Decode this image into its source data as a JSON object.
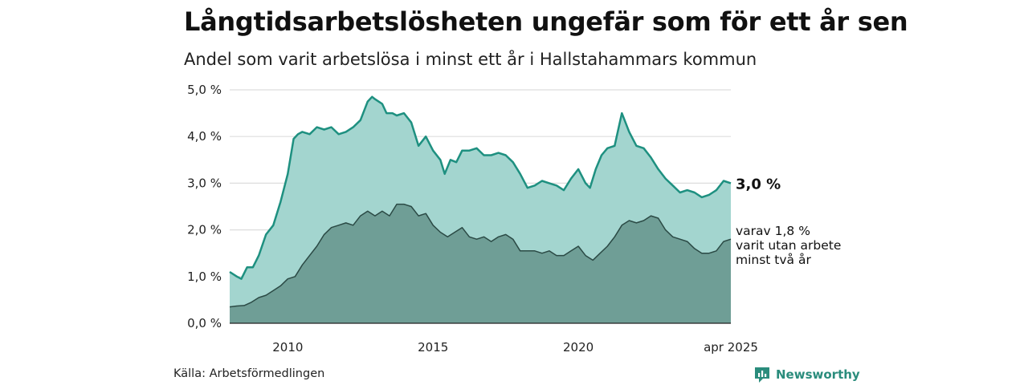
{
  "title": "Långtidsarbetslösheten ungefär som för ett år sen",
  "subtitle": "Andel som varit arbetslösa i minst ett år i Hallstahammars kommun",
  "source": "Källa: Arbetsförmedlingen",
  "logo": {
    "text": "Newsworthy",
    "icon": "newsworthy-logo-icon",
    "color": "#2a8c7c"
  },
  "colors": {
    "total_fill": "#a3d5cf",
    "total_line": "#1e9080",
    "sub_fill": "#6f9e96",
    "sub_line": "#2b4a45",
    "grid": "#dddddd",
    "baseline": "#222222"
  },
  "chart_data": {
    "type": "area",
    "grid": true,
    "ylim": [
      0,
      5
    ],
    "y_ticks": [
      0,
      1,
      2,
      3,
      4,
      5
    ],
    "y_tick_labels": [
      "0,0 %",
      "1,0 %",
      "2,0 %",
      "3,0 %",
      "4,0 %",
      "5,0 %"
    ],
    "x_range": [
      2008.0,
      2025.25
    ],
    "x_ticks": [
      2010,
      2015,
      2020,
      2025.25
    ],
    "x_tick_labels": [
      "2010",
      "2015",
      "2020",
      "apr 2025"
    ],
    "series": [
      {
        "key": "total",
        "end_label": "3,0 %",
        "points": [
          [
            2008.0,
            1.1
          ],
          [
            2008.25,
            1.0
          ],
          [
            2008.4,
            0.95
          ],
          [
            2008.6,
            1.2
          ],
          [
            2008.8,
            1.2
          ],
          [
            2009.0,
            1.45
          ],
          [
            2009.25,
            1.9
          ],
          [
            2009.5,
            2.1
          ],
          [
            2009.75,
            2.6
          ],
          [
            2010.0,
            3.2
          ],
          [
            2010.2,
            3.95
          ],
          [
            2010.35,
            4.05
          ],
          [
            2010.5,
            4.1
          ],
          [
            2010.75,
            4.05
          ],
          [
            2011.0,
            4.2
          ],
          [
            2011.25,
            4.15
          ],
          [
            2011.5,
            4.2
          ],
          [
            2011.75,
            4.05
          ],
          [
            2012.0,
            4.1
          ],
          [
            2012.25,
            4.2
          ],
          [
            2012.5,
            4.35
          ],
          [
            2012.75,
            4.75
          ],
          [
            2012.9,
            4.85
          ],
          [
            2013.0,
            4.8
          ],
          [
            2013.25,
            4.7
          ],
          [
            2013.4,
            4.5
          ],
          [
            2013.6,
            4.5
          ],
          [
            2013.75,
            4.45
          ],
          [
            2014.0,
            4.5
          ],
          [
            2014.25,
            4.3
          ],
          [
            2014.5,
            3.8
          ],
          [
            2014.75,
            4.0
          ],
          [
            2015.0,
            3.7
          ],
          [
            2015.25,
            3.5
          ],
          [
            2015.4,
            3.2
          ],
          [
            2015.6,
            3.5
          ],
          [
            2015.8,
            3.45
          ],
          [
            2016.0,
            3.7
          ],
          [
            2016.25,
            3.7
          ],
          [
            2016.5,
            3.75
          ],
          [
            2016.75,
            3.6
          ],
          [
            2017.0,
            3.6
          ],
          [
            2017.25,
            3.65
          ],
          [
            2017.5,
            3.6
          ],
          [
            2017.75,
            3.45
          ],
          [
            2018.0,
            3.2
          ],
          [
            2018.25,
            2.9
          ],
          [
            2018.5,
            2.95
          ],
          [
            2018.75,
            3.05
          ],
          [
            2019.0,
            3.0
          ],
          [
            2019.25,
            2.95
          ],
          [
            2019.5,
            2.85
          ],
          [
            2019.75,
            3.1
          ],
          [
            2020.0,
            3.3
          ],
          [
            2020.25,
            3.0
          ],
          [
            2020.4,
            2.9
          ],
          [
            2020.6,
            3.3
          ],
          [
            2020.8,
            3.6
          ],
          [
            2021.0,
            3.75
          ],
          [
            2021.25,
            3.8
          ],
          [
            2021.5,
            4.5
          ],
          [
            2021.75,
            4.1
          ],
          [
            2022.0,
            3.8
          ],
          [
            2022.25,
            3.75
          ],
          [
            2022.5,
            3.55
          ],
          [
            2022.75,
            3.3
          ],
          [
            2023.0,
            3.1
          ],
          [
            2023.25,
            2.95
          ],
          [
            2023.5,
            2.8
          ],
          [
            2023.75,
            2.85
          ],
          [
            2024.0,
            2.8
          ],
          [
            2024.25,
            2.7
          ],
          [
            2024.5,
            2.75
          ],
          [
            2024.75,
            2.85
          ],
          [
            2025.0,
            3.05
          ],
          [
            2025.25,
            3.0
          ]
        ]
      },
      {
        "key": "two_years",
        "end_label_lines": [
          "varav 1,8 %",
          "varit utan arbete",
          "minst två år"
        ],
        "points": [
          [
            2008.0,
            0.35
          ],
          [
            2008.25,
            0.37
          ],
          [
            2008.5,
            0.38
          ],
          [
            2008.75,
            0.45
          ],
          [
            2009.0,
            0.55
          ],
          [
            2009.25,
            0.6
          ],
          [
            2009.5,
            0.7
          ],
          [
            2009.75,
            0.8
          ],
          [
            2010.0,
            0.95
          ],
          [
            2010.25,
            1.0
          ],
          [
            2010.5,
            1.25
          ],
          [
            2010.75,
            1.45
          ],
          [
            2011.0,
            1.65
          ],
          [
            2011.25,
            1.9
          ],
          [
            2011.5,
            2.05
          ],
          [
            2011.75,
            2.1
          ],
          [
            2012.0,
            2.15
          ],
          [
            2012.25,
            2.1
          ],
          [
            2012.5,
            2.3
          ],
          [
            2012.75,
            2.4
          ],
          [
            2013.0,
            2.3
          ],
          [
            2013.25,
            2.4
          ],
          [
            2013.5,
            2.3
          ],
          [
            2013.75,
            2.55
          ],
          [
            2014.0,
            2.55
          ],
          [
            2014.25,
            2.5
          ],
          [
            2014.5,
            2.3
          ],
          [
            2014.75,
            2.35
          ],
          [
            2015.0,
            2.1
          ],
          [
            2015.25,
            1.95
          ],
          [
            2015.5,
            1.85
          ],
          [
            2015.75,
            1.95
          ],
          [
            2016.0,
            2.05
          ],
          [
            2016.25,
            1.85
          ],
          [
            2016.5,
            1.8
          ],
          [
            2016.75,
            1.85
          ],
          [
            2017.0,
            1.75
          ],
          [
            2017.25,
            1.85
          ],
          [
            2017.5,
            1.9
          ],
          [
            2017.75,
            1.8
          ],
          [
            2018.0,
            1.55
          ],
          [
            2018.25,
            1.55
          ],
          [
            2018.5,
            1.55
          ],
          [
            2018.75,
            1.5
          ],
          [
            2019.0,
            1.55
          ],
          [
            2019.25,
            1.45
          ],
          [
            2019.5,
            1.45
          ],
          [
            2019.75,
            1.55
          ],
          [
            2020.0,
            1.65
          ],
          [
            2020.25,
            1.45
          ],
          [
            2020.5,
            1.35
          ],
          [
            2020.75,
            1.5
          ],
          [
            2021.0,
            1.65
          ],
          [
            2021.25,
            1.85
          ],
          [
            2021.5,
            2.1
          ],
          [
            2021.75,
            2.2
          ],
          [
            2022.0,
            2.15
          ],
          [
            2022.25,
            2.2
          ],
          [
            2022.5,
            2.3
          ],
          [
            2022.75,
            2.25
          ],
          [
            2023.0,
            2.0
          ],
          [
            2023.25,
            1.85
          ],
          [
            2023.5,
            1.8
          ],
          [
            2023.75,
            1.75
          ],
          [
            2024.0,
            1.6
          ],
          [
            2024.25,
            1.5
          ],
          [
            2024.5,
            1.5
          ],
          [
            2024.75,
            1.55
          ],
          [
            2025.0,
            1.75
          ],
          [
            2025.25,
            1.8
          ]
        ]
      }
    ]
  }
}
